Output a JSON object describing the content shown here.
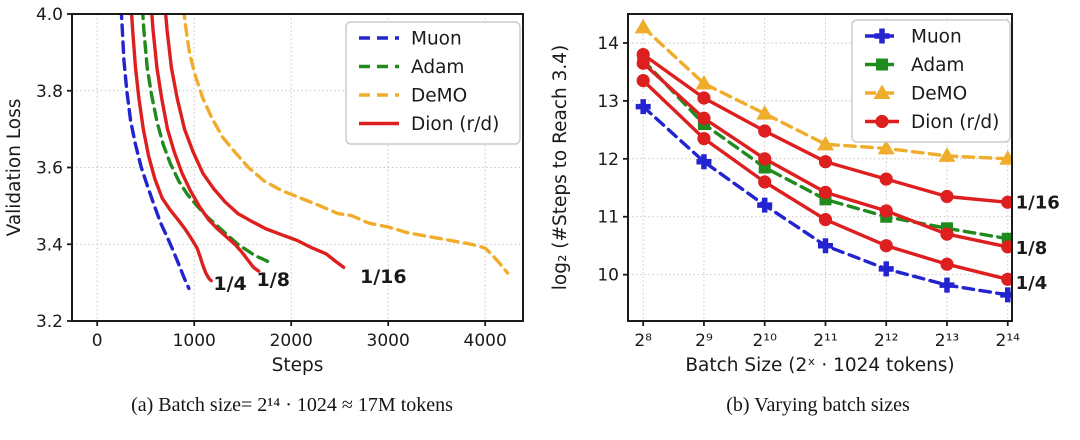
{
  "captions": {
    "a": "(a) Batch size= 2¹⁴ · 1024 ≈ 17M tokens",
    "b": "(b) Varying batch sizes"
  },
  "colors": {
    "muon_blue": "#2323cf",
    "adam_green": "#1f8b1f",
    "demo_orange": "#f0ad2b",
    "dion_red": "#de1f1f"
  },
  "chart_data": [
    {
      "type": "line",
      "panel": "a",
      "xlabel": "Steps",
      "ylabel": "Validation Loss",
      "xlim": [
        -260,
        4390
      ],
      "ylim": [
        3.2,
        4.0
      ],
      "xticks": [
        0,
        1000,
        2000,
        3000,
        4000
      ],
      "xtick_labels": [
        "0",
        "1000",
        "2000",
        "3000",
        "4000"
      ],
      "yticks": [
        3.2,
        3.4,
        3.6,
        3.8,
        4.0
      ],
      "ytick_labels": [
        "3.2",
        "3.4",
        "3.6",
        "3.8",
        "4.0"
      ],
      "grid": true,
      "legend_position": "top-right",
      "legend": [
        {
          "label": "Muon",
          "color": "#2323cf",
          "dash": true,
          "marker": null
        },
        {
          "label": "Adam",
          "color": "#1f8b1f",
          "dash": true,
          "marker": null
        },
        {
          "label": "DeMO",
          "color": "#f0ad2b",
          "dash": true,
          "marker": null
        },
        {
          "label": "Dion (r/d)",
          "color": "#de1f1f",
          "dash": false,
          "marker": null
        }
      ],
      "series": [
        {
          "name": "Muon",
          "color": "#2323cf",
          "dash": true,
          "marker": null,
          "points": [
            [
              235,
              4.06
            ],
            [
              255,
              3.98
            ],
            [
              275,
              3.88
            ],
            [
              305,
              3.8
            ],
            [
              345,
              3.72
            ],
            [
              395,
              3.66
            ],
            [
              455,
              3.6
            ],
            [
              520,
              3.55
            ],
            [
              590,
              3.5
            ],
            [
              655,
              3.455
            ],
            [
              720,
              3.42
            ],
            [
              780,
              3.385
            ],
            [
              845,
              3.345
            ],
            [
              900,
              3.31
            ],
            [
              945,
              3.285
            ]
          ]
        },
        {
          "name": "Adam",
          "color": "#1f8b1f",
          "dash": true,
          "marker": null,
          "points": [
            [
              455,
              4.06
            ],
            [
              480,
              3.96
            ],
            [
              515,
              3.86
            ],
            [
              560,
              3.79
            ],
            [
              615,
              3.72
            ],
            [
              680,
              3.66
            ],
            [
              755,
              3.61
            ],
            [
              840,
              3.565
            ],
            [
              930,
              3.53
            ],
            [
              1030,
              3.5
            ],
            [
              1140,
              3.47
            ],
            [
              1250,
              3.445
            ],
            [
              1360,
              3.42
            ],
            [
              1450,
              3.4
            ],
            [
              1540,
              3.385
            ],
            [
              1630,
              3.37
            ],
            [
              1720,
              3.36
            ],
            [
              1800,
              3.35
            ]
          ]
        },
        {
          "name": "DeMO",
          "color": "#f0ad2b",
          "dash": true,
          "marker": null,
          "points": [
            [
              875,
              4.06
            ],
            [
              905,
              3.98
            ],
            [
              950,
              3.9
            ],
            [
              1010,
              3.84
            ],
            [
              1090,
              3.78
            ],
            [
              1180,
              3.73
            ],
            [
              1290,
              3.68
            ],
            [
              1420,
              3.64
            ],
            [
              1560,
              3.6
            ],
            [
              1720,
              3.565
            ],
            [
              1900,
              3.54
            ],
            [
              2100,
              3.52
            ],
            [
              2300,
              3.5
            ],
            [
              2480,
              3.48
            ],
            [
              2620,
              3.475
            ],
            [
              2800,
              3.455
            ],
            [
              3000,
              3.445
            ],
            [
              3200,
              3.43
            ],
            [
              3420,
              3.42
            ],
            [
              3640,
              3.41
            ],
            [
              3860,
              3.4
            ],
            [
              4000,
              3.39
            ],
            [
              4080,
              3.37
            ],
            [
              4150,
              3.35
            ],
            [
              4230,
              3.325
            ]
          ]
        },
        {
          "name": "Dion 1/4",
          "color": "#de1f1f",
          "dash": false,
          "marker": null,
          "points": [
            [
              340,
              4.06
            ],
            [
              365,
              3.96
            ],
            [
              395,
              3.86
            ],
            [
              430,
              3.78
            ],
            [
              475,
              3.7
            ],
            [
              530,
              3.63
            ],
            [
              595,
              3.57
            ],
            [
              670,
              3.52
            ],
            [
              750,
              3.49
            ],
            [
              830,
              3.465
            ],
            [
              905,
              3.44
            ],
            [
              970,
              3.415
            ],
            [
              1030,
              3.39
            ],
            [
              1065,
              3.365
            ],
            [
              1090,
              3.345
            ],
            [
              1120,
              3.325
            ],
            [
              1155,
              3.31
            ],
            [
              1175,
              3.305
            ]
          ]
        },
        {
          "name": "Dion 1/8",
          "color": "#de1f1f",
          "dash": false,
          "marker": null,
          "points": [
            [
              545,
              4.06
            ],
            [
              575,
              3.96
            ],
            [
              615,
              3.86
            ],
            [
              665,
              3.78
            ],
            [
              725,
              3.7
            ],
            [
              795,
              3.64
            ],
            [
              875,
              3.585
            ],
            [
              960,
              3.54
            ],
            [
              1050,
              3.5
            ],
            [
              1145,
              3.465
            ],
            [
              1240,
              3.44
            ],
            [
              1330,
              3.42
            ],
            [
              1420,
              3.4
            ],
            [
              1490,
              3.38
            ],
            [
              1550,
              3.36
            ],
            [
              1610,
              3.34
            ],
            [
              1665,
              3.33
            ]
          ]
        },
        {
          "name": "Dion 1/16",
          "color": "#de1f1f",
          "dash": false,
          "marker": null,
          "points": [
            [
              685,
              4.06
            ],
            [
              720,
              3.96
            ],
            [
              765,
              3.86
            ],
            [
              825,
              3.78
            ],
            [
              900,
              3.7
            ],
            [
              990,
              3.64
            ],
            [
              1090,
              3.585
            ],
            [
              1200,
              3.545
            ],
            [
              1320,
              3.51
            ],
            [
              1450,
              3.48
            ],
            [
              1590,
              3.46
            ],
            [
              1740,
              3.44
            ],
            [
              1900,
              3.425
            ],
            [
              2060,
              3.41
            ],
            [
              2220,
              3.39
            ],
            [
              2360,
              3.375
            ],
            [
              2460,
              3.355
            ],
            [
              2540,
              3.34
            ]
          ]
        }
      ],
      "annotations": [
        {
          "text": "1/4",
          "x": 1370,
          "y": 3.297,
          "color": "#de1f1f",
          "size": 19,
          "weight": 700,
          "anchor": "middle"
        },
        {
          "text": "1/8",
          "x": 1815,
          "y": 3.307,
          "color": "#de1f1f",
          "size": 19,
          "weight": 700,
          "anchor": "middle"
        },
        {
          "text": "1/16",
          "x": 2950,
          "y": 3.315,
          "color": "#de1f1f",
          "size": 19,
          "weight": 700,
          "anchor": "middle"
        }
      ]
    },
    {
      "type": "line",
      "panel": "b",
      "xlabel": "Batch Size (2ˣ · 1024 tokens)",
      "ylabel": "log₂ (#Steps to Reach 3.4)",
      "x": [
        8,
        9,
        10,
        11,
        12,
        13,
        14
      ],
      "xlim": [
        7.75,
        14.07
      ],
      "ylim": [
        9.2,
        14.5
      ],
      "xticks": [
        8,
        9,
        10,
        11,
        12,
        13,
        14
      ],
      "xtick_labels": [
        "2⁸",
        "2⁹",
        "2¹⁰",
        "2¹¹",
        "2¹²",
        "2¹³",
        "2¹⁴"
      ],
      "yticks": [
        10,
        11,
        12,
        13,
        14
      ],
      "ytick_labels": [
        "10",
        "11",
        "12",
        "13",
        "14"
      ],
      "grid": true,
      "legend_position": "top-right",
      "legend": [
        {
          "label": "Muon",
          "color": "#2323cf",
          "dash": true,
          "marker": "plus"
        },
        {
          "label": "Adam",
          "color": "#1f8b1f",
          "dash": true,
          "marker": "square"
        },
        {
          "label": "DeMO",
          "color": "#f0ad2b",
          "dash": true,
          "marker": "triangle"
        },
        {
          "label": "Dion (r/d)",
          "color": "#de1f1f",
          "dash": false,
          "marker": "circle"
        }
      ],
      "series": [
        {
          "name": "Muon",
          "color": "#2323cf",
          "dash": true,
          "marker": "plus",
          "values": [
            12.9,
            11.95,
            11.2,
            10.5,
            10.1,
            9.82,
            9.65
          ]
        },
        {
          "name": "Adam",
          "color": "#1f8b1f",
          "dash": true,
          "marker": "square",
          "values": [
            13.7,
            12.6,
            11.85,
            11.3,
            11.0,
            10.8,
            10.62
          ]
        },
        {
          "name": "DeMO",
          "color": "#f0ad2b",
          "dash": true,
          "marker": "triangle",
          "values": [
            14.27,
            13.3,
            12.78,
            12.25,
            12.18,
            12.05,
            12.0
          ]
        },
        {
          "name": "Dion 1/4",
          "color": "#de1f1f",
          "dash": false,
          "marker": "circle",
          "values": [
            13.35,
            12.35,
            11.6,
            10.95,
            10.5,
            10.18,
            9.92
          ]
        },
        {
          "name": "Dion 1/8",
          "color": "#de1f1f",
          "dash": false,
          "marker": "circle",
          "values": [
            13.65,
            12.7,
            12.0,
            11.42,
            11.1,
            10.7,
            10.48
          ]
        },
        {
          "name": "Dion 1/16",
          "color": "#de1f1f",
          "dash": false,
          "marker": "circle",
          "values": [
            13.8,
            13.05,
            12.48,
            11.95,
            11.65,
            11.35,
            11.25
          ]
        }
      ],
      "annotations": [
        {
          "text": "1/16",
          "x": 14.13,
          "y": 11.25,
          "color": "#de1f1f",
          "size": 18,
          "weight": 600,
          "anchor": "start"
        },
        {
          "text": "1/8",
          "x": 14.13,
          "y": 10.46,
          "color": "#de1f1f",
          "size": 18,
          "weight": 600,
          "anchor": "start"
        },
        {
          "text": "1/4",
          "x": 14.13,
          "y": 9.86,
          "color": "#de1f1f",
          "size": 18,
          "weight": 600,
          "anchor": "start"
        }
      ]
    }
  ]
}
